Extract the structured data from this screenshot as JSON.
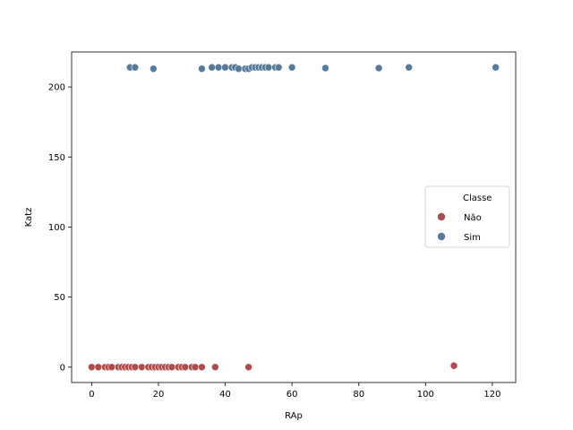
{
  "chart_data": {
    "type": "scatter",
    "title": "",
    "xlabel": "RAp",
    "ylabel": "Katz",
    "xlim": [
      -6,
      127
    ],
    "ylim": [
      -11,
      225
    ],
    "xticks": [
      0,
      20,
      40,
      60,
      80,
      100,
      120
    ],
    "yticks": [
      0,
      50,
      100,
      150,
      200
    ],
    "grid": false,
    "legend": {
      "title": "Classe",
      "placement": "center-right"
    },
    "series": [
      {
        "name": "Não",
        "color": "#b04b4b",
        "points": [
          [
            0,
            0
          ],
          [
            2,
            0
          ],
          [
            4,
            0
          ],
          [
            5,
            0
          ],
          [
            6,
            0
          ],
          [
            8,
            0
          ],
          [
            9,
            0
          ],
          [
            10,
            0
          ],
          [
            11,
            0
          ],
          [
            12,
            0
          ],
          [
            13,
            0
          ],
          [
            15,
            0
          ],
          [
            17,
            0
          ],
          [
            18,
            0
          ],
          [
            19,
            0
          ],
          [
            20,
            0
          ],
          [
            21,
            0
          ],
          [
            22,
            0
          ],
          [
            23,
            0
          ],
          [
            24,
            0
          ],
          [
            26,
            0
          ],
          [
            27,
            0
          ],
          [
            28,
            0
          ],
          [
            30,
            0
          ],
          [
            31,
            0
          ],
          [
            33,
            0
          ],
          [
            37,
            0
          ],
          [
            47,
            0
          ],
          [
            108.5,
            1
          ]
        ]
      },
      {
        "name": "Sim",
        "color": "#557a9b",
        "points": [
          [
            11.5,
            214
          ],
          [
            13,
            214
          ],
          [
            18.5,
            213
          ],
          [
            33,
            213
          ],
          [
            36,
            214
          ],
          [
            38,
            214
          ],
          [
            40,
            214
          ],
          [
            42,
            214
          ],
          [
            43,
            214
          ],
          [
            44,
            213
          ],
          [
            46,
            213
          ],
          [
            47,
            213
          ],
          [
            48,
            214
          ],
          [
            49,
            214
          ],
          [
            50,
            214
          ],
          [
            51,
            214
          ],
          [
            52,
            214
          ],
          [
            53,
            214
          ],
          [
            55,
            214
          ],
          [
            56,
            214
          ],
          [
            60,
            214
          ],
          [
            70,
            213.5
          ],
          [
            86,
            213.5
          ],
          [
            95,
            214
          ],
          [
            121,
            214
          ]
        ]
      }
    ]
  }
}
